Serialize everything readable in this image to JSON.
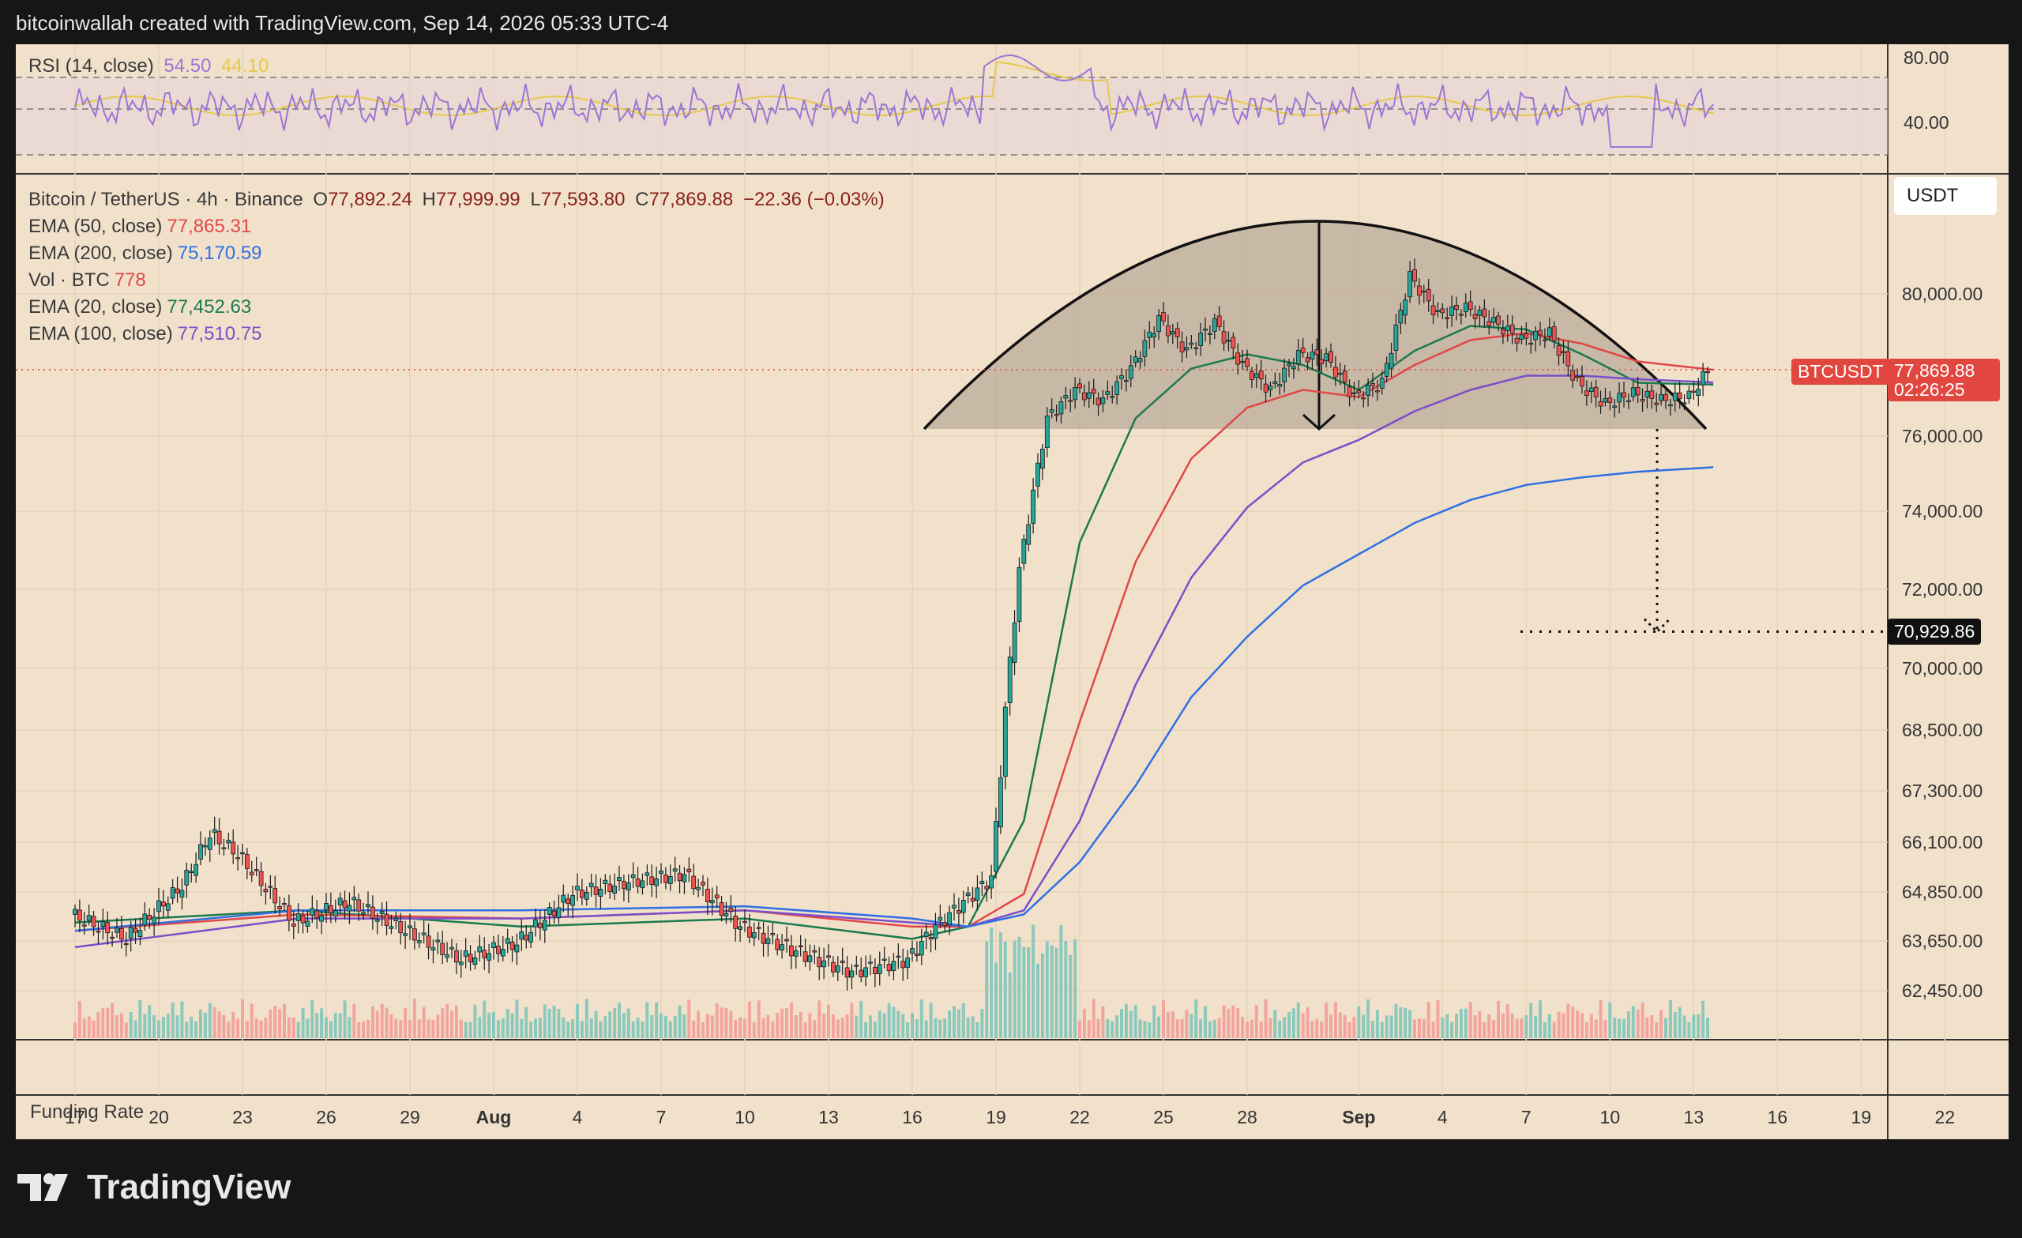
{
  "header": {
    "credit": "bitcoinwallah created with TradingView.com, Sep 14, 2026 05:33 UTC-4"
  },
  "rsi": {
    "label": "RSI (14, close)",
    "value": "54.50",
    "ma_value": "44.10",
    "ticks": [
      "80.00",
      "40.00"
    ]
  },
  "legend": {
    "symbol": "Bitcoin / TetherUS · 4h · Binance",
    "o_label": "O",
    "o": "77,892.24",
    "h_label": "H",
    "h": "77,999.99",
    "l_label": "L",
    "l": "77,593.80",
    "c_label": "C",
    "c": "77,869.88",
    "change": "−22.36 (−0.03%)",
    "ema50_label": "EMA (50, close)",
    "ema50": "77,865.31",
    "ema200_label": "EMA (200, close)",
    "ema200": "75,170.59",
    "vol_label": "Vol · BTC",
    "vol": "778",
    "ema20_label": "EMA (20, close)",
    "ema20": "77,452.63",
    "ema100_label": "EMA (100, close)",
    "ema100": "77,510.75"
  },
  "currency_button": "USDT",
  "price_tag": {
    "symbol": "BTCUSDT",
    "price": "77,869.88",
    "countdown": "02:26:25"
  },
  "target_tag": "70,929.86",
  "funding_label": "Funding Rate",
  "footer": {
    "brand": "TradingView"
  },
  "colors": {
    "up": "#26a69a",
    "down": "#ef5350",
    "ema20": "#1b7a4e",
    "ema50": "#e04848",
    "ema100": "#7b4fc9",
    "ema200": "#2f6fe4",
    "rsi": "#9a77d6",
    "rsi_ma": "#e6c84a"
  },
  "chart_data": {
    "type": "line",
    "title": "Bitcoin / TetherUS · 4h · Binance",
    "x_tick_labels": [
      "17",
      "20",
      "23",
      "26",
      "29",
      "Aug",
      "4",
      "7",
      "10",
      "13",
      "16",
      "19",
      "22",
      "25",
      "28",
      "Sep",
      "4",
      "7",
      "10",
      "13",
      "16",
      "19",
      "22"
    ],
    "y_tick_labels": [
      "80,000.00",
      "76,000.00",
      "74,000.00",
      "72,000.00",
      "70,000.00",
      "68,500.00",
      "67,300.00",
      "66,100.00",
      "64,850.00",
      "63,650.00",
      "62,450.00"
    ],
    "y_tick_values": [
      80000,
      76000,
      74000,
      72000,
      70000,
      68500,
      67300,
      66100,
      64850,
      63650,
      62450
    ],
    "x_tick_days": [
      0,
      3,
      6,
      9,
      12,
      15,
      18,
      21,
      24,
      27,
      30,
      33,
      36,
      39,
      42,
      46,
      49,
      52,
      55,
      58,
      61,
      64,
      67
    ],
    "series": [
      {
        "name": "Price (close)",
        "x": [
          0,
          2,
          4,
          5,
          6,
          8,
          10,
          12,
          14,
          16,
          18,
          20,
          22,
          24,
          26,
          28,
          30,
          31,
          32,
          33,
          33.5,
          34,
          35,
          36,
          37,
          38,
          39,
          40,
          41,
          42,
          43,
          44,
          45,
          46,
          47,
          48,
          49,
          50,
          51,
          52,
          53,
          54,
          55,
          56,
          57,
          58,
          58.7
        ],
        "y": [
          64300,
          63700,
          65000,
          66300,
          65800,
          64100,
          64600,
          63900,
          63200,
          63600,
          64800,
          65100,
          65300,
          64000,
          63400,
          62900,
          63200,
          64000,
          64600,
          65200,
          69000,
          72500,
          76500,
          77300,
          77000,
          77900,
          79300,
          78400,
          79200,
          78000,
          77300,
          78300,
          78200,
          77100,
          77500,
          80500,
          79400,
          79600,
          79200,
          78700,
          78900,
          77500,
          76900,
          77200,
          77000,
          77100,
          77870
        ]
      },
      {
        "name": "EMA (20, close)",
        "x": [
          0,
          8,
          16,
          24,
          30,
          32,
          34,
          36,
          38,
          40,
          42,
          44,
          46,
          48,
          50,
          52,
          54,
          56,
          58.7
        ],
        "y": [
          64100,
          64400,
          64000,
          64200,
          63700,
          64000,
          66600,
          73200,
          76500,
          77900,
          78300,
          78000,
          77300,
          78400,
          79100,
          79000,
          78300,
          77500,
          77450
        ]
      },
      {
        "name": "EMA (50, close)",
        "x": [
          0,
          8,
          16,
          24,
          30,
          32,
          34,
          36,
          38,
          40,
          42,
          44,
          46,
          48,
          50,
          52,
          54,
          56,
          58.7
        ],
        "y": [
          63900,
          64300,
          64200,
          64400,
          64000,
          64000,
          64800,
          68700,
          72700,
          75400,
          76800,
          77300,
          77100,
          78000,
          78700,
          78900,
          78600,
          78100,
          77865
        ]
      },
      {
        "name": "EMA (100, close)",
        "x": [
          0,
          8,
          16,
          24,
          30,
          32,
          34,
          36,
          38,
          40,
          42,
          44,
          46,
          48,
          50,
          52,
          54,
          56,
          58.7
        ],
        "y": [
          63500,
          64200,
          64200,
          64400,
          64100,
          64000,
          64400,
          66600,
          69600,
          72300,
          74100,
          75300,
          75900,
          76700,
          77300,
          77700,
          77700,
          77600,
          77510
        ]
      },
      {
        "name": "EMA (200, close)",
        "x": [
          0,
          8,
          16,
          24,
          30,
          32,
          34,
          36,
          38,
          40,
          42,
          44,
          46,
          48,
          50,
          52,
          54,
          56,
          58.7
        ],
        "y": [
          63900,
          64400,
          64400,
          64500,
          64200,
          64000,
          64300,
          65600,
          67400,
          69300,
          70800,
          72100,
          72900,
          73700,
          74300,
          74700,
          74900,
          75050,
          75170
        ]
      }
    ],
    "annotations": {
      "pattern": "rounded top",
      "neckline": 76200,
      "target": 70929.86
    }
  }
}
